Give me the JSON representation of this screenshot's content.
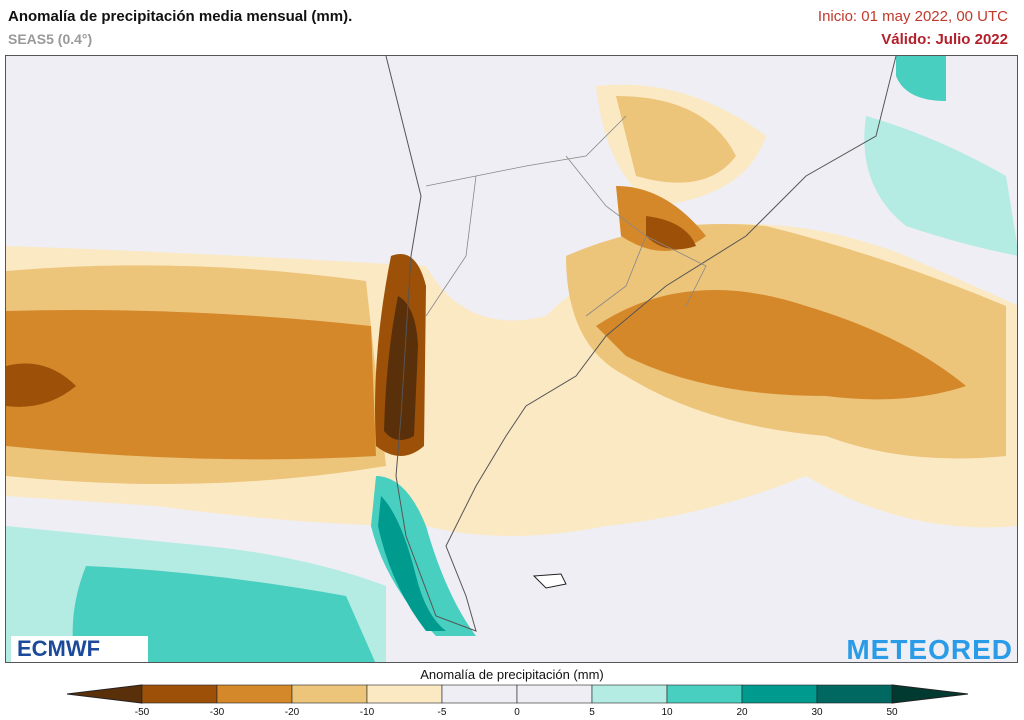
{
  "header": {
    "title": "Anomalía de precipitación media mensual (mm).",
    "subtitle": "SEAS5 (0.4°)",
    "init": "Inicio: 01 may 2022, 00 UTC",
    "valid": "Válido: Julio 2022"
  },
  "logos": {
    "left": "ECMWF",
    "right": "METEORED"
  },
  "colorbar": {
    "title": "Anomalía de precipitación (mm)",
    "ticks": [
      "-50",
      "-30",
      "-20",
      "-10",
      "-5",
      "0",
      "5",
      "10",
      "20",
      "30",
      "50"
    ],
    "colors": [
      "#5a300a",
      "#9c5008",
      "#d4882a",
      "#ecc47a",
      "#fbe9c4",
      "#eeeef4",
      "#eeeef4",
      "#b4ebe3",
      "#48cfc0",
      "#009a8e",
      "#006860",
      "#003a30"
    ]
  },
  "map": {
    "region": "South America - southern cone",
    "variable": "precipitation anomaly",
    "units": "mm"
  }
}
